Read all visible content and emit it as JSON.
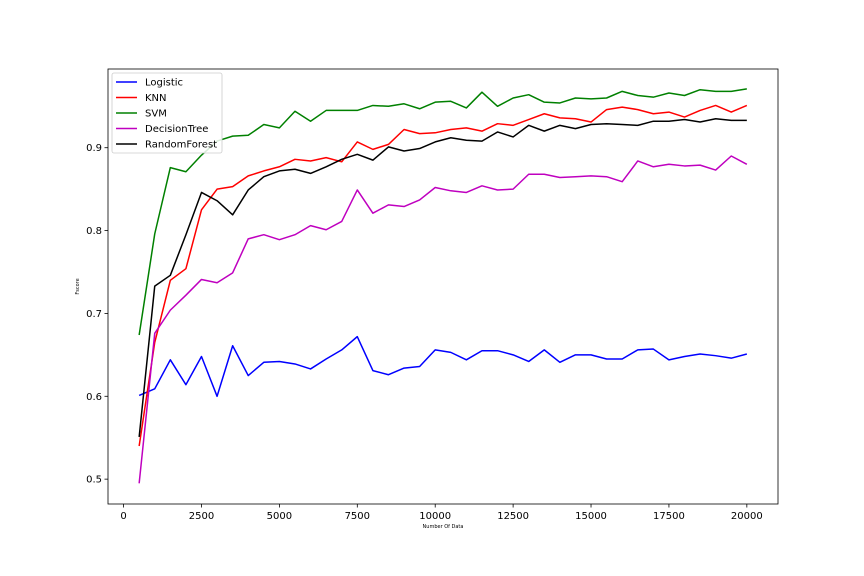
{
  "chart_data": {
    "type": "line",
    "title": "",
    "xlabel": "Number Of Data",
    "ylabel": "Fscore",
    "xlim": [
      -500,
      21000
    ],
    "ylim": [
      0.47,
      0.995
    ],
    "xticks": [
      0,
      2500,
      5000,
      7500,
      10000,
      12500,
      15000,
      17500,
      20000
    ],
    "yticks": [
      0.5,
      0.6,
      0.7,
      0.8,
      0.9
    ],
    "legend_position": "top-left",
    "grid": false,
    "x": [
      500,
      1000,
      1500,
      2000,
      2500,
      3000,
      3500,
      4000,
      4500,
      5000,
      5500,
      6000,
      6500,
      7000,
      7500,
      8000,
      8500,
      9000,
      9500,
      10000,
      10500,
      11000,
      11500,
      12000,
      12500,
      13000,
      13500,
      14000,
      14500,
      15000,
      15500,
      16000,
      16500,
      17000,
      17500,
      18000,
      18500,
      19000,
      19500,
      20000
    ],
    "series": [
      {
        "name": "Logistic",
        "color": "#0000ff",
        "values": [
          0.601,
          0.609,
          0.644,
          0.614,
          0.648,
          0.6,
          0.661,
          0.625,
          0.641,
          0.642,
          0.639,
          0.633,
          0.645,
          0.656,
          0.672,
          0.631,
          0.626,
          0.634,
          0.636,
          0.656,
          0.653,
          0.644,
          0.655,
          0.655,
          0.65,
          0.642,
          0.656,
          0.641,
          0.65,
          0.65,
          0.645,
          0.645,
          0.656,
          0.657,
          0.644,
          0.648,
          0.651,
          0.649,
          0.646,
          0.651
        ]
      },
      {
        "name": "KNN",
        "color": "#ff0000",
        "values": [
          0.54,
          0.665,
          0.74,
          0.754,
          0.825,
          0.85,
          0.853,
          0.866,
          0.872,
          0.877,
          0.886,
          0.884,
          0.888,
          0.883,
          0.907,
          0.898,
          0.904,
          0.922,
          0.917,
          0.918,
          0.922,
          0.924,
          0.92,
          0.929,
          0.927,
          0.934,
          0.941,
          0.936,
          0.935,
          0.931,
          0.946,
          0.949,
          0.946,
          0.941,
          0.943,
          0.937,
          0.945,
          0.951,
          0.943,
          0.951
        ]
      },
      {
        "name": "SVM",
        "color": "#008000",
        "values": [
          0.674,
          0.796,
          0.876,
          0.871,
          0.891,
          0.908,
          0.914,
          0.915,
          0.928,
          0.924,
          0.944,
          0.932,
          0.945,
          0.945,
          0.945,
          0.951,
          0.95,
          0.953,
          0.947,
          0.955,
          0.956,
          0.948,
          0.967,
          0.95,
          0.96,
          0.964,
          0.955,
          0.954,
          0.96,
          0.959,
          0.96,
          0.968,
          0.963,
          0.961,
          0.966,
          0.963,
          0.97,
          0.968,
          0.968,
          0.971
        ]
      },
      {
        "name": "DecisionTree",
        "color": "#bf00bf",
        "values": [
          0.495,
          0.676,
          0.704,
          0.722,
          0.741,
          0.737,
          0.749,
          0.79,
          0.795,
          0.789,
          0.795,
          0.806,
          0.801,
          0.811,
          0.849,
          0.821,
          0.831,
          0.829,
          0.837,
          0.852,
          0.848,
          0.846,
          0.854,
          0.849,
          0.85,
          0.868,
          0.868,
          0.864,
          0.865,
          0.866,
          0.865,
          0.859,
          0.884,
          0.877,
          0.88,
          0.878,
          0.879,
          0.873,
          0.89,
          0.88
        ]
      },
      {
        "name": "RandomForest",
        "color": "#000000",
        "values": [
          0.551,
          0.733,
          0.746,
          0.795,
          0.846,
          0.836,
          0.819,
          0.849,
          0.865,
          0.872,
          0.874,
          0.869,
          0.877,
          0.886,
          0.892,
          0.885,
          0.901,
          0.896,
          0.899,
          0.907,
          0.912,
          0.909,
          0.908,
          0.919,
          0.913,
          0.927,
          0.92,
          0.927,
          0.923,
          0.928,
          0.929,
          0.928,
          0.927,
          0.932,
          0.932,
          0.934,
          0.931,
          0.935,
          0.933,
          0.933
        ]
      }
    ]
  }
}
